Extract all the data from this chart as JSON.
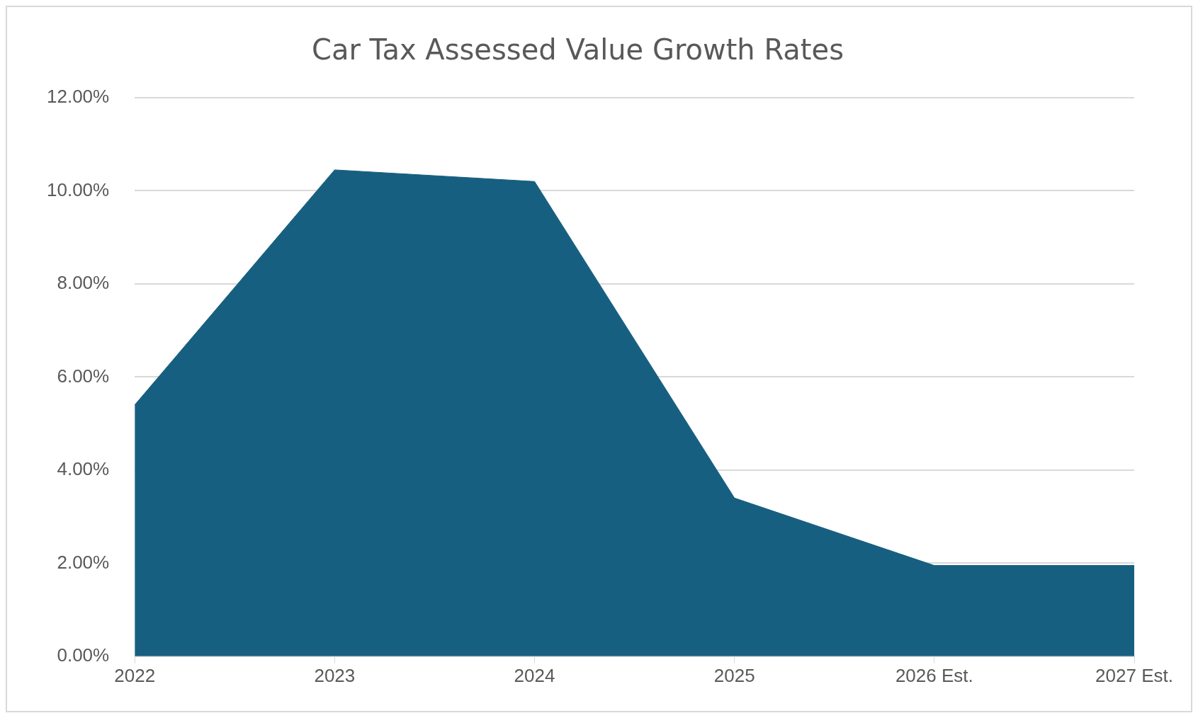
{
  "chart_data": {
    "type": "area",
    "title": "Car Tax Assessed Value Growth Rates",
    "categories": [
      "2022",
      "2023",
      "2024",
      "2025",
      "2026 Est.",
      "2027 Est."
    ],
    "values": [
      5.4,
      10.45,
      10.2,
      3.4,
      1.95,
      1.95
    ],
    "color": "#175f80",
    "ylim": [
      0,
      12
    ],
    "yticks": [
      {
        "value": 0,
        "label": "0.00%"
      },
      {
        "value": 2,
        "label": "2.00%"
      },
      {
        "value": 4,
        "label": "4.00%"
      },
      {
        "value": 6,
        "label": "6.00%"
      },
      {
        "value": 8,
        "label": "8.00%"
      },
      {
        "value": 10,
        "label": "10.00%"
      },
      {
        "value": 12,
        "label": "12.00%"
      }
    ],
    "grid": "y",
    "legend": false
  }
}
